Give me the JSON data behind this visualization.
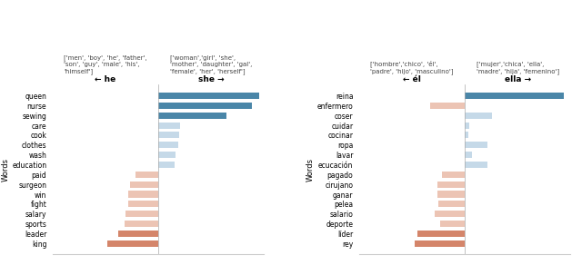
{
  "left_chart": {
    "title_left": "['men', 'boy', 'he', 'father',\n'son', 'guy', 'male', 'his',\n'himself']",
    "title_right": "['woman','girl', 'she',\n'mother', 'daughter', 'gal',\n'female', 'her', 'herself']",
    "xlabel_left": "← he",
    "xlabel_right": "she →",
    "ylabel": "Words",
    "words": [
      "queen",
      "nurse",
      "sewing",
      "care",
      "cook",
      "clothes",
      "wash",
      "education",
      "paid",
      "surgeon",
      "win",
      "fight",
      "salary",
      "sports",
      "leader",
      "king"
    ],
    "she_values": [
      1.0,
      0.93,
      0.68,
      0.22,
      0.21,
      0.2,
      0.17,
      0.16,
      0.0,
      0.0,
      0.0,
      0.0,
      0.0,
      0.0,
      0.0,
      0.0
    ],
    "he_values": [
      0.0,
      0.0,
      0.0,
      0.0,
      0.0,
      0.0,
      0.0,
      0.0,
      0.22,
      0.28,
      0.3,
      0.3,
      0.32,
      0.33,
      0.4,
      0.5
    ],
    "she_dark_threshold": 0.5,
    "he_dark_threshold": 0.35,
    "color_she_dark": "#4a86a8",
    "color_she_light": "#c5d9e8",
    "color_he_dark": "#d4856a",
    "color_he_light": "#ecc4b4"
  },
  "right_chart": {
    "title_left": "['hombre','chico', 'él',\n'padre', 'hijo', 'masculino']",
    "title_right": "['mujer','chica', 'ella',\n'madre', 'hija', 'femenino']",
    "xlabel_left": "← él",
    "xlabel_right": "ella →",
    "ylabel": "Words",
    "words": [
      "reina",
      "enfermero",
      "coser",
      "cuidar",
      "cocinar",
      "ropa",
      "lavar",
      "ecucación",
      "pagado",
      "cirujano",
      "ganar",
      "pelea",
      "salario",
      "deporte",
      "líder",
      "rey"
    ],
    "ella_values": [
      0.8,
      0.0,
      0.22,
      0.04,
      0.03,
      0.18,
      0.06,
      0.18,
      0.0,
      0.0,
      0.0,
      0.0,
      0.0,
      0.0,
      0.0,
      0.0
    ],
    "el_values": [
      0.0,
      0.28,
      0.0,
      0.0,
      0.0,
      0.0,
      0.0,
      0.0,
      0.18,
      0.22,
      0.22,
      0.21,
      0.24,
      0.2,
      0.38,
      0.4
    ],
    "color_ella_dark": "#4a86a8",
    "color_ella_light": "#c5d9e8",
    "color_el_dark": "#d4856a",
    "color_el_light": "#ecc4b4"
  },
  "fig_width": 6.4,
  "fig_height": 2.92,
  "dpi": 100
}
